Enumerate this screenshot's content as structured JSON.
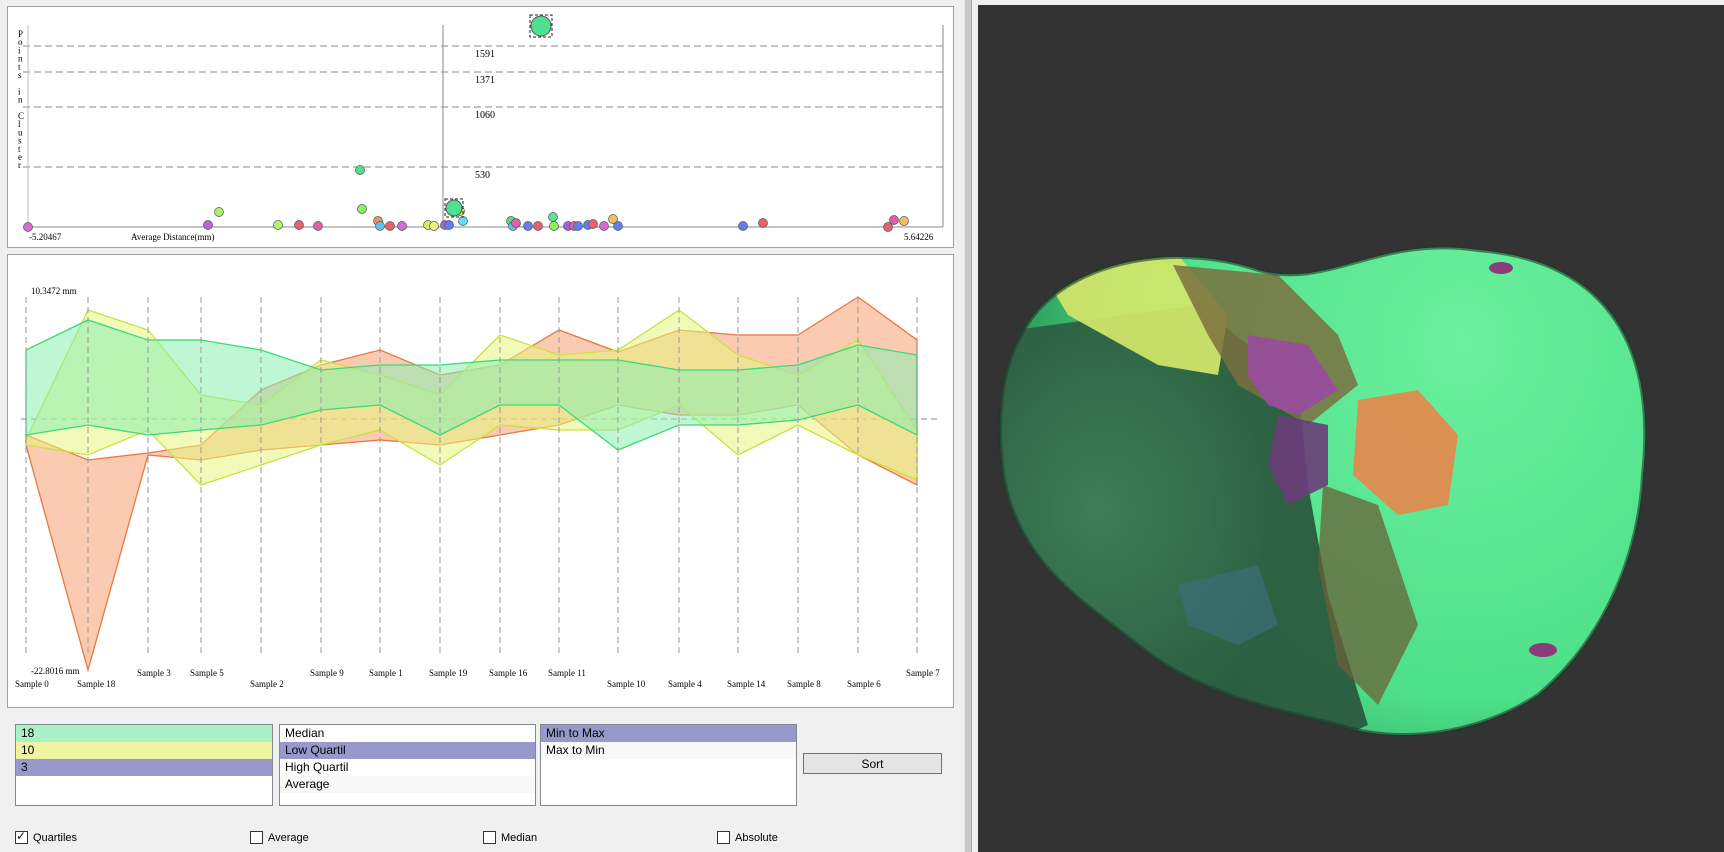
{
  "scatter": {
    "y_axis_label": "Points in Cluster",
    "x_axis_label": "Average Distance(mm)",
    "x_min_label": "-5.20467",
    "x_max_label": "5.64226",
    "gridline_labels": [
      "1591",
      "1371",
      "1060",
      "530"
    ]
  },
  "samples": {
    "max_label": "10.3472 mm",
    "min_label": "-22.8016 mm",
    "sample_labels": [
      "Sample 0",
      "Sample 18",
      "Sample 3",
      "Sample 5",
      "Sample 2",
      "Sample 9",
      "Sample 1",
      "Sample 19",
      "Sample 16",
      "Sample 11",
      "Sample 10",
      "Sample 4",
      "Sample 14",
      "Sample 8",
      "Sample 6",
      "Sample 7"
    ]
  },
  "clusters": [
    {
      "label": "18",
      "color": "#a8f2c6"
    },
    {
      "label": "10",
      "color": "#eef5a0"
    },
    {
      "label": "3",
      "color": "#9898cc"
    }
  ],
  "stats": [
    "Median",
    "Low Quartil",
    "High Quartil",
    "Average"
  ],
  "stats_selected": "Low Quartil",
  "order": [
    "Min to Max",
    "Max to Min"
  ],
  "order_selected": "Min to Max",
  "sort_label": "Sort",
  "checkboxes": [
    {
      "label": "Quartiles",
      "checked": true
    },
    {
      "label": "Average",
      "checked": false
    },
    {
      "label": "Median",
      "checked": false
    },
    {
      "label": "Absolute",
      "checked": false
    }
  ],
  "colors": {
    "cluster_green": "#4ee68a",
    "cluster_yellow": "#d9f050",
    "cluster_orange": "#f08850",
    "selection": "#9898cc",
    "viewport_bg": "#333333"
  }
}
